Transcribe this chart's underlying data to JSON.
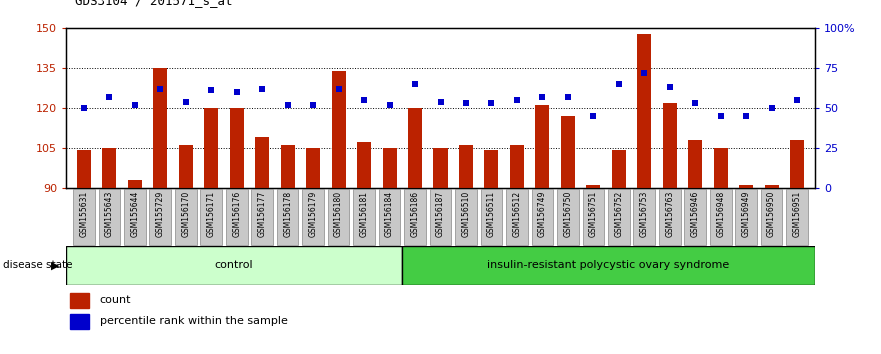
{
  "title": "GDS3104 / 201571_s_at",
  "samples": [
    "GSM155631",
    "GSM155643",
    "GSM155644",
    "GSM155729",
    "GSM156170",
    "GSM156171",
    "GSM156176",
    "GSM156177",
    "GSM156178",
    "GSM156179",
    "GSM156180",
    "GSM156181",
    "GSM156184",
    "GSM156186",
    "GSM156187",
    "GSM156510",
    "GSM156511",
    "GSM156512",
    "GSM156749",
    "GSM156750",
    "GSM156751",
    "GSM156752",
    "GSM156753",
    "GSM156763",
    "GSM156946",
    "GSM156948",
    "GSM156949",
    "GSM156950",
    "GSM156951"
  ],
  "counts": [
    104,
    105,
    93,
    135,
    106,
    120,
    120,
    109,
    106,
    105,
    134,
    107,
    105,
    120,
    105,
    106,
    104,
    106,
    121,
    117,
    91,
    104,
    148,
    122,
    108,
    105,
    91,
    91,
    108
  ],
  "percentiles": [
    50,
    57,
    52,
    62,
    54,
    61,
    60,
    62,
    52,
    52,
    62,
    55,
    52,
    65,
    54,
    53,
    53,
    55,
    57,
    57,
    45,
    65,
    72,
    63,
    53,
    45,
    45,
    50,
    55
  ],
  "n_control": 13,
  "group_labels": [
    "control",
    "insulin-resistant polycystic ovary syndrome"
  ],
  "disease_state_label": "disease state",
  "legend_count_label": "count",
  "legend_percentile_label": "percentile rank within the sample",
  "ylim_left": [
    90,
    150
  ],
  "ylim_right": [
    0,
    100
  ],
  "yticks_left": [
    90,
    105,
    120,
    135,
    150
  ],
  "yticks_right": [
    0,
    25,
    50,
    75,
    100
  ],
  "ytick_dotted": [
    105,
    120,
    135
  ],
  "bar_color": "#bb2200",
  "square_color": "#0000cc",
  "control_bg": "#ccffcc",
  "disease_bg": "#44cc44",
  "plot_bg": "#ffffff",
  "ticklabel_bg": "#c8c8c8"
}
